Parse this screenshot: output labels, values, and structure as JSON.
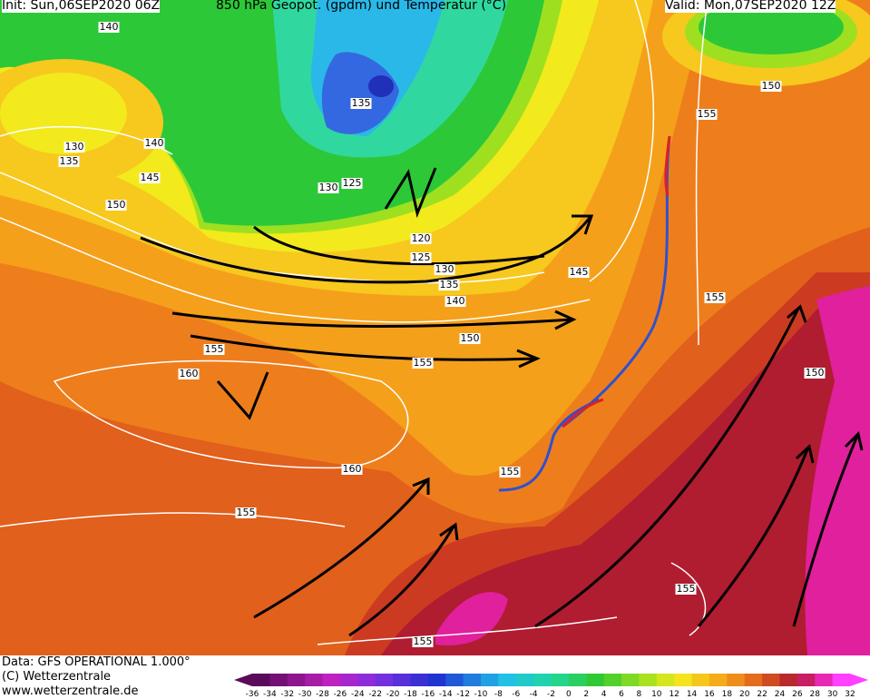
{
  "header": {
    "init": "Init: Sun,06SEP2020 06Z",
    "title": "850 hPa Geopot. (gpdm) und Temperatur (°C)",
    "valid": "Valid: Mon,07SEP2020 12Z"
  },
  "contour_labels": [
    "140",
    "130",
    "135",
    "145",
    "150",
    "140",
    "135",
    "130",
    "125",
    "120",
    "125",
    "130",
    "135",
    "140",
    "150",
    "155",
    "160",
    "155",
    "160",
    "155",
    "155",
    "145",
    "155",
    "155",
    "150",
    "150",
    "155",
    "155"
  ],
  "footer": {
    "data": "Data: GFS OPERATIONAL 1.000°",
    "copyright": "(C) Wetterzentrale",
    "url": "www.wetterzentrale.de"
  },
  "colorbar": {
    "labels": [
      -36,
      -34,
      -32,
      -30,
      -28,
      -26,
      -24,
      -22,
      -20,
      -18,
      -16,
      -14,
      -12,
      -10,
      -8,
      -6,
      -4,
      -2,
      0,
      2,
      4,
      6,
      8,
      10,
      12,
      14,
      16,
      18,
      20,
      22,
      24,
      26,
      28,
      30,
      32
    ]
  }
}
